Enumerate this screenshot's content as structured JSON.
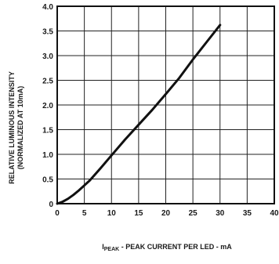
{
  "chart_data": {
    "type": "line",
    "ylabel_line1": "RELATIVE LUMINOUS INTENSITY",
    "ylabel_line2": "(NORMALIZED AT 10mA)",
    "xlabel_prefix": "I",
    "xlabel_subscript": "PEAK",
    "xlabel_rest": " - PEAK CURRENT PER LED - mA",
    "xlim": [
      0,
      40
    ],
    "ylim": [
      0,
      4.0
    ],
    "x_ticks": [
      "0",
      "5",
      "10",
      "15",
      "20",
      "25",
      "30",
      "35",
      "40"
    ],
    "y_ticks": [
      "0",
      "0.5",
      "1.0",
      "1.5",
      "2.0",
      "2.5",
      "3.0",
      "3.5",
      "4.0"
    ],
    "grid": true,
    "series": [
      {
        "x": [
          0,
          1,
          2,
          3,
          4,
          5,
          6,
          8,
          10,
          12.5,
          15,
          17.5,
          20,
          22.5,
          25,
          27.5,
          30
        ],
        "y": [
          0,
          0.04,
          0.1,
          0.18,
          0.27,
          0.37,
          0.47,
          0.72,
          0.98,
          1.3,
          1.6,
          1.9,
          2.22,
          2.55,
          2.92,
          3.27,
          3.62
        ]
      }
    ],
    "line_color": "#111111",
    "grid_color": "#222222"
  }
}
